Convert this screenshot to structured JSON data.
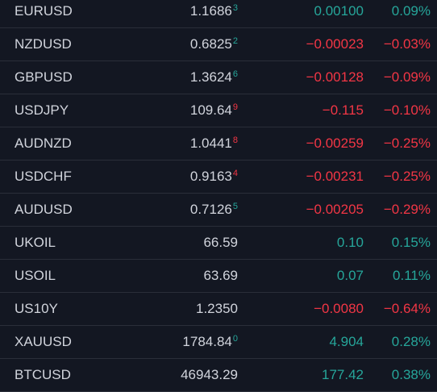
{
  "colors": {
    "background": "#131722",
    "text": "#d1d4dc",
    "up": "#26a69a",
    "down": "#f23645",
    "divider": "#2a2e39"
  },
  "rows": [
    {
      "symbol": "EURUSD",
      "last_main": "1.1686",
      "last_pip": "",
      "last_frac": "3",
      "pip_dir": "neutral",
      "frac_dir": "up",
      "change": "0.00100",
      "change_pct": "0.09%",
      "dir": "up"
    },
    {
      "symbol": "NZDUSD",
      "last_main": "0.6825",
      "last_pip": "",
      "last_frac": "2",
      "pip_dir": "neutral",
      "frac_dir": "up",
      "change": "−0.00023",
      "change_pct": "−0.03%",
      "dir": "down"
    },
    {
      "symbol": "GBPUSD",
      "last_main": "1.3624",
      "last_pip": "",
      "last_frac": "6",
      "pip_dir": "neutral",
      "frac_dir": "up",
      "change": "−0.00128",
      "change_pct": "−0.09%",
      "dir": "down"
    },
    {
      "symbol": "USDJPY",
      "last_main": "109.6",
      "last_pip": "4",
      "last_frac": "9",
      "pip_dir": "down",
      "frac_dir": "down",
      "change": "−0.115",
      "change_pct": "−0.10%",
      "dir": "down"
    },
    {
      "symbol": "AUDNZD",
      "last_main": "1.0441",
      "last_pip": "",
      "last_frac": "8",
      "pip_dir": "neutral",
      "frac_dir": "down",
      "change": "−0.00259",
      "change_pct": "−0.25%",
      "dir": "down"
    },
    {
      "symbol": "USDCHF",
      "last_main": "0.9163",
      "last_pip": "",
      "last_frac": "4",
      "pip_dir": "neutral",
      "frac_dir": "down",
      "change": "−0.00231",
      "change_pct": "−0.25%",
      "dir": "down"
    },
    {
      "symbol": "AUDUSD",
      "last_main": "0.7126",
      "last_pip": "",
      "last_frac": "5",
      "pip_dir": "neutral",
      "frac_dir": "up",
      "change": "−0.00205",
      "change_pct": "−0.29%",
      "dir": "down"
    },
    {
      "symbol": "UKOIL",
      "last_main": "66.",
      "last_pip": "59",
      "last_frac": "",
      "pip_dir": "down",
      "frac_dir": "neutral",
      "change": "0.10",
      "change_pct": "0.15%",
      "dir": "up"
    },
    {
      "symbol": "USOIL",
      "last_main": "63.69",
      "last_pip": "",
      "last_frac": "",
      "pip_dir": "neutral",
      "frac_dir": "neutral",
      "change": "0.07",
      "change_pct": "0.11%",
      "dir": "up"
    },
    {
      "symbol": "US10Y",
      "last_main": "1.2350",
      "last_pip": "",
      "last_frac": "",
      "pip_dir": "neutral",
      "frac_dir": "neutral",
      "change": "−0.0080",
      "change_pct": "−0.64%",
      "dir": "down"
    },
    {
      "symbol": "XAUUSD",
      "last_main": "1784.",
      "last_pip": "84",
      "last_frac": "0",
      "pip_dir": "down",
      "frac_dir": "up",
      "change": "4.904",
      "change_pct": "0.28%",
      "dir": "up"
    },
    {
      "symbol": "BTCUSD",
      "last_main": "46943.",
      "last_pip": "29",
      "last_frac": "",
      "pip_dir": "down",
      "frac_dir": "neutral",
      "change": "177.42",
      "change_pct": "0.38%",
      "dir": "up"
    }
  ]
}
